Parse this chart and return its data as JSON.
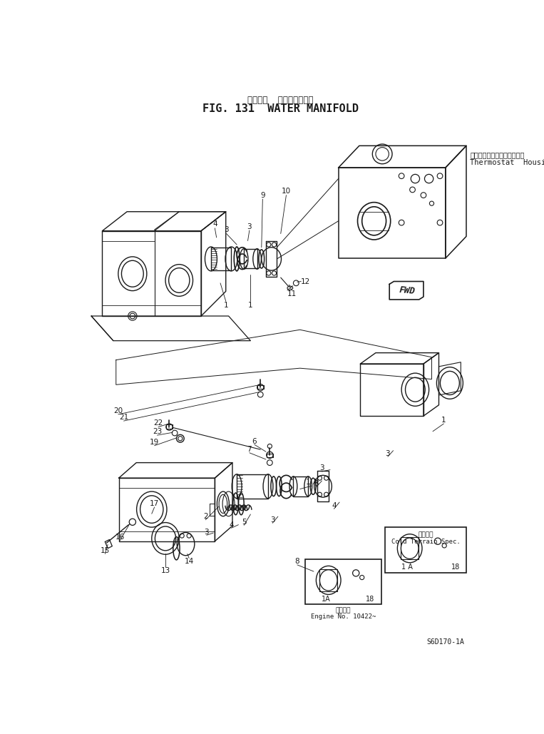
{
  "title_japanese": "ウォータ  マニホールド゚",
  "title_english": "FIG. 131  WATER MANIFOLD",
  "footer_code": "S6D170-1A",
  "background_color": "#ffffff",
  "line_color": "#1a1a1a",
  "thermostat_label_jp": "サーモスタットハウジング゚",
  "thermostat_label_en": "Thermostat  Housing",
  "cold_terrain_jp": "寒地仕様",
  "cold_terrain_en": "Cold Terrain Spec.",
  "engine_label": "適用号等",
  "engine_no": "Engine No. 10422~",
  "fwd_label": "FWD"
}
